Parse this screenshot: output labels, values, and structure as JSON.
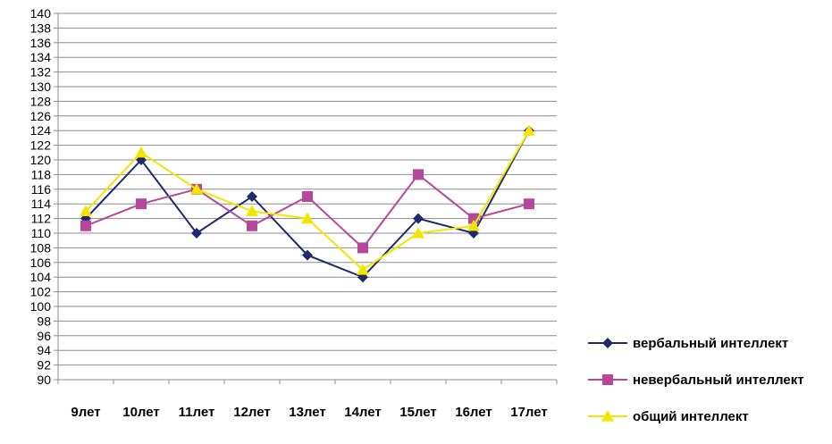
{
  "chart_data": {
    "type": "line",
    "categories": [
      "9лет",
      "10лет",
      "11лет",
      "12лет",
      "13лет",
      "14лет",
      "15лет",
      "16лет",
      "17лет"
    ],
    "ylim": [
      90,
      140
    ],
    "ystep": 2,
    "grid": true,
    "legend_position": "bottom-right",
    "series": [
      {
        "name": "вербальный интеллект",
        "color": "#1f2a6b",
        "marker": "diamond",
        "values": [
          112,
          120,
          110,
          115,
          107,
          104,
          112,
          110,
          124
        ]
      },
      {
        "name": "невербальный интеллект",
        "color": "#b5489a",
        "marker": "square",
        "values": [
          111,
          114,
          116,
          111,
          115,
          108,
          118,
          112,
          114
        ]
      },
      {
        "name": "общий интеллект",
        "color": "#f2e600",
        "marker": "triangle",
        "values": [
          113,
          121,
          116,
          113,
          112,
          105,
          110,
          111,
          124
        ]
      }
    ]
  }
}
